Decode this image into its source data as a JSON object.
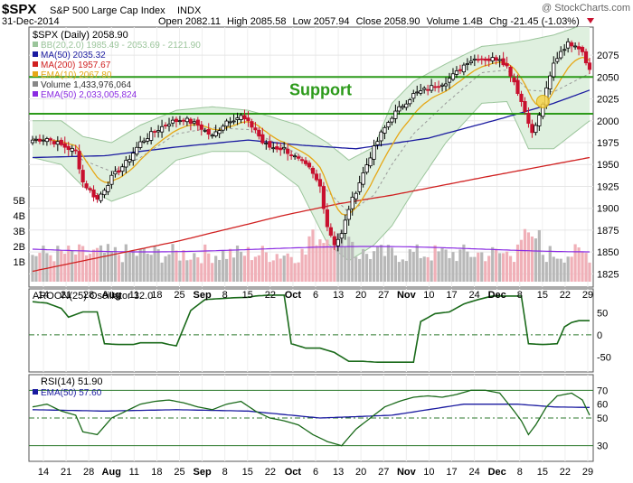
{
  "header": {
    "symbol": "$SPX",
    "name": "S&P 500 Large Cap Index",
    "exchange": "INDX",
    "watermark": "@ StockCharts.com",
    "date": "31-Dec-2014",
    "open_label": "Open",
    "open": "2082.11",
    "high_label": "High",
    "high": "2085.58",
    "low_label": "Low",
    "low": "2057.94",
    "close_label": "Close",
    "close": "2058.90",
    "volume_label": "Volume",
    "volume": "1.4B",
    "chg_label": "Chg",
    "chg": "-21.45 (-1.03%)"
  },
  "colors": {
    "up": "#000000",
    "down": "#c8102e",
    "bb_fill": "#dff0df",
    "bb_line": "#9bc59b",
    "ma50": "#1a1aa0",
    "ma200": "#d02020",
    "ema10": "#e6a817",
    "ema50_vol": "#8a2be2",
    "support": "#2c9a1a",
    "aroon": "#1a6a1a",
    "rsi": "#1a6a1a",
    "rsi_ema": "#1a1aa0",
    "vol_up": "#b8b8b8",
    "vol_down": "#f0b0b8"
  },
  "chart_data": [
    {
      "type": "candlestick",
      "title": "$SPX (Daily) 2058.90",
      "annotation": "Support",
      "support_levels": [
        2050,
        2008
      ],
      "y_ticks": [
        1825,
        1850,
        1875,
        1900,
        1925,
        1950,
        1975,
        2000,
        2025,
        2050,
        2075
      ],
      "ylim": [
        1812,
        2105
      ],
      "volume_ticks": [
        "1B",
        "2B",
        "3B",
        "4B",
        "5B"
      ],
      "x_labels": [
        "14",
        "21",
        "28",
        "Aug",
        "11",
        "18",
        "25",
        "Sep",
        "8",
        "15",
        "22",
        "Oct",
        "6",
        "13",
        "20",
        "27",
        "Nov",
        "10",
        "17",
        "24",
        "Dec",
        "8",
        "15",
        "22",
        "29"
      ],
      "legend": [
        {
          "key": "bb",
          "text": "BB(20,2.0) 1985.49 - 2053.69 - 2121.90"
        },
        {
          "key": "ma50",
          "text": "MA(50) 2035.32"
        },
        {
          "key": "ma200",
          "text": "MA(200) 1957.67"
        },
        {
          "key": "ema10",
          "text": "EMA(10) 2067.80"
        },
        {
          "key": "volume",
          "text": "Volume 1,433,976,064"
        },
        {
          "key": "ema50v",
          "text": "EMA(50) 2,033,005,824"
        }
      ],
      "anchors": [
        [
          0,
          1978
        ],
        [
          4,
          1980
        ],
        [
          8,
          1972
        ],
        [
          12,
          1965
        ],
        [
          14,
          1930
        ],
        [
          18,
          1910
        ],
        [
          22,
          1935
        ],
        [
          26,
          1952
        ],
        [
          30,
          1975
        ],
        [
          34,
          1988
        ],
        [
          38,
          1998
        ],
        [
          42,
          2002
        ],
        [
          46,
          1995
        ],
        [
          50,
          1982
        ],
        [
          54,
          2000
        ],
        [
          58,
          2005
        ],
        [
          62,
          1990
        ],
        [
          64,
          1975
        ],
        [
          66,
          1970
        ],
        [
          70,
          1968
        ],
        [
          74,
          1955
        ],
        [
          77,
          1945
        ],
        [
          80,
          1925
        ],
        [
          82,
          1880
        ],
        [
          84,
          1860
        ],
        [
          86,
          1870
        ],
        [
          88,
          1900
        ],
        [
          91,
          1930
        ],
        [
          94,
          1960
        ],
        [
          97,
          1985
        ],
        [
          100,
          2005
        ],
        [
          103,
          2018
        ],
        [
          106,
          2030
        ],
        [
          109,
          2035
        ],
        [
          112,
          2040
        ],
        [
          115,
          2045
        ],
        [
          118,
          2055
        ],
        [
          121,
          2068
        ],
        [
          124,
          2072
        ],
        [
          127,
          2070
        ],
        [
          130,
          2072
        ],
        [
          132,
          2062
        ],
        [
          134,
          2045
        ],
        [
          136,
          2022
        ],
        [
          138,
          2000
        ],
        [
          139,
          1985
        ],
        [
          141,
          2005
        ],
        [
          143,
          2035
        ],
        [
          145,
          2065
        ],
        [
          147,
          2080
        ],
        [
          149,
          2088
        ],
        [
          151,
          2088
        ],
        [
          153,
          2080
        ],
        [
          155,
          2058
        ]
      ],
      "ma50_points": [
        [
          0,
          1958
        ],
        [
          20,
          1960
        ],
        [
          40,
          1970
        ],
        [
          60,
          1978
        ],
        [
          75,
          1972
        ],
        [
          90,
          1968
        ],
        [
          110,
          1980
        ],
        [
          130,
          2002
        ],
        [
          145,
          2020
        ],
        [
          155,
          2035
        ]
      ],
      "ma200_points": [
        [
          0,
          1828
        ],
        [
          40,
          1862
        ],
        [
          70,
          1892
        ],
        [
          85,
          1905
        ],
        [
          100,
          1915
        ],
        [
          125,
          1935
        ],
        [
          155,
          1958
        ]
      ],
      "bb_upper": [
        [
          0,
          2000
        ],
        [
          8,
          2000
        ],
        [
          14,
          1982
        ],
        [
          22,
          1975
        ],
        [
          30,
          1995
        ],
        [
          40,
          2012
        ],
        [
          50,
          2016
        ],
        [
          60,
          2012
        ],
        [
          66,
          2005
        ],
        [
          74,
          1995
        ],
        [
          82,
          1975
        ],
        [
          88,
          1955
        ],
        [
          95,
          1970
        ],
        [
          100,
          2020
        ],
        [
          106,
          2045
        ],
        [
          115,
          2065
        ],
        [
          125,
          2085
        ],
        [
          132,
          2088
        ],
        [
          138,
          2092
        ],
        [
          145,
          2098
        ],
        [
          155,
          2112
        ]
      ],
      "bb_lower": [
        [
          0,
          1958
        ],
        [
          8,
          1950
        ],
        [
          14,
          1925
        ],
        [
          22,
          1908
        ],
        [
          30,
          1920
        ],
        [
          40,
          1955
        ],
        [
          50,
          1965
        ],
        [
          60,
          1965
        ],
        [
          66,
          1950
        ],
        [
          74,
          1925
        ],
        [
          82,
          1860
        ],
        [
          88,
          1840
        ],
        [
          95,
          1858
        ],
        [
          100,
          1880
        ],
        [
          106,
          1920
        ],
        [
          115,
          1975
        ],
        [
          125,
          2020
        ],
        [
          132,
          2022
        ],
        [
          138,
          1968
        ],
        [
          145,
          1968
        ],
        [
          155,
          2000
        ]
      ],
      "bb_mid": [
        [
          0,
          1980
        ],
        [
          8,
          1975
        ],
        [
          14,
          1955
        ],
        [
          22,
          1942
        ],
        [
          30,
          1958
        ],
        [
          40,
          1985
        ],
        [
          50,
          1992
        ],
        [
          60,
          1990
        ],
        [
          66,
          1978
        ],
        [
          74,
          1962
        ],
        [
          82,
          1920
        ],
        [
          88,
          1895
        ],
        [
          95,
          1915
        ],
        [
          100,
          1950
        ],
        [
          106,
          1985
        ],
        [
          115,
          2020
        ],
        [
          125,
          2055
        ],
        [
          132,
          2058
        ],
        [
          138,
          2035
        ],
        [
          145,
          2033
        ],
        [
          155,
          2054
        ]
      ]
    },
    {
      "type": "line",
      "title": "AROON(25) Oscillator 32.0",
      "y_ticks": [
        -50,
        0,
        50
      ],
      "ylim": [
        -80,
        100
      ],
      "points": [
        [
          0,
          75
        ],
        [
          4,
          72
        ],
        [
          8,
          60
        ],
        [
          10,
          40
        ],
        [
          14,
          52
        ],
        [
          18,
          52
        ],
        [
          20,
          -20
        ],
        [
          24,
          -22
        ],
        [
          28,
          -22
        ],
        [
          30,
          -18
        ],
        [
          34,
          -18
        ],
        [
          36,
          -18
        ],
        [
          38,
          -22
        ],
        [
          40,
          -25
        ],
        [
          44,
          55
        ],
        [
          48,
          80
        ],
        [
          52,
          82
        ],
        [
          56,
          84
        ],
        [
          60,
          85
        ],
        [
          62,
          88
        ],
        [
          66,
          90
        ],
        [
          70,
          90
        ],
        [
          72,
          -20
        ],
        [
          76,
          -30
        ],
        [
          80,
          -30
        ],
        [
          84,
          -40
        ],
        [
          88,
          -60
        ],
        [
          92,
          -60
        ],
        [
          96,
          -62
        ],
        [
          100,
          -62
        ],
        [
          104,
          -62
        ],
        [
          106,
          -62
        ],
        [
          108,
          30
        ],
        [
          112,
          48
        ],
        [
          116,
          52
        ],
        [
          120,
          70
        ],
        [
          124,
          80
        ],
        [
          128,
          88
        ],
        [
          132,
          88
        ],
        [
          136,
          88
        ],
        [
          138,
          -20
        ],
        [
          142,
          -22
        ],
        [
          146,
          -20
        ],
        [
          148,
          18
        ],
        [
          150,
          28
        ],
        [
          152,
          32
        ],
        [
          155,
          32
        ]
      ]
    },
    {
      "type": "line",
      "title": "RSI(14) 51.90",
      "series_label": "EMA(50) 57.60",
      "y_ticks": [
        30,
        50,
        60,
        70
      ],
      "ylim": [
        20,
        80
      ],
      "rsi_points": [
        [
          0,
          58
        ],
        [
          4,
          60
        ],
        [
          8,
          55
        ],
        [
          12,
          52
        ],
        [
          14,
          40
        ],
        [
          18,
          38
        ],
        [
          22,
          50
        ],
        [
          26,
          55
        ],
        [
          30,
          60
        ],
        [
          34,
          62
        ],
        [
          38,
          63
        ],
        [
          42,
          61
        ],
        [
          46,
          58
        ],
        [
          50,
          56
        ],
        [
          54,
          60
        ],
        [
          58,
          62
        ],
        [
          62,
          55
        ],
        [
          66,
          50
        ],
        [
          70,
          48
        ],
        [
          74,
          45
        ],
        [
          78,
          38
        ],
        [
          82,
          33
        ],
        [
          86,
          30
        ],
        [
          90,
          42
        ],
        [
          94,
          50
        ],
        [
          98,
          58
        ],
        [
          102,
          62
        ],
        [
          106,
          65
        ],
        [
          110,
          66
        ],
        [
          114,
          65
        ],
        [
          118,
          67
        ],
        [
          122,
          70
        ],
        [
          126,
          70
        ],
        [
          130,
          68
        ],
        [
          134,
          55
        ],
        [
          136,
          48
        ],
        [
          138,
          38
        ],
        [
          140,
          45
        ],
        [
          143,
          58
        ],
        [
          146,
          66
        ],
        [
          150,
          68
        ],
        [
          153,
          63
        ],
        [
          155,
          52
        ]
      ],
      "ema_points": [
        [
          0,
          56
        ],
        [
          20,
          55
        ],
        [
          40,
          56
        ],
        [
          60,
          55
        ],
        [
          80,
          50
        ],
        [
          100,
          52
        ],
        [
          120,
          60
        ],
        [
          135,
          60
        ],
        [
          145,
          58
        ],
        [
          155,
          57.6
        ]
      ]
    }
  ]
}
